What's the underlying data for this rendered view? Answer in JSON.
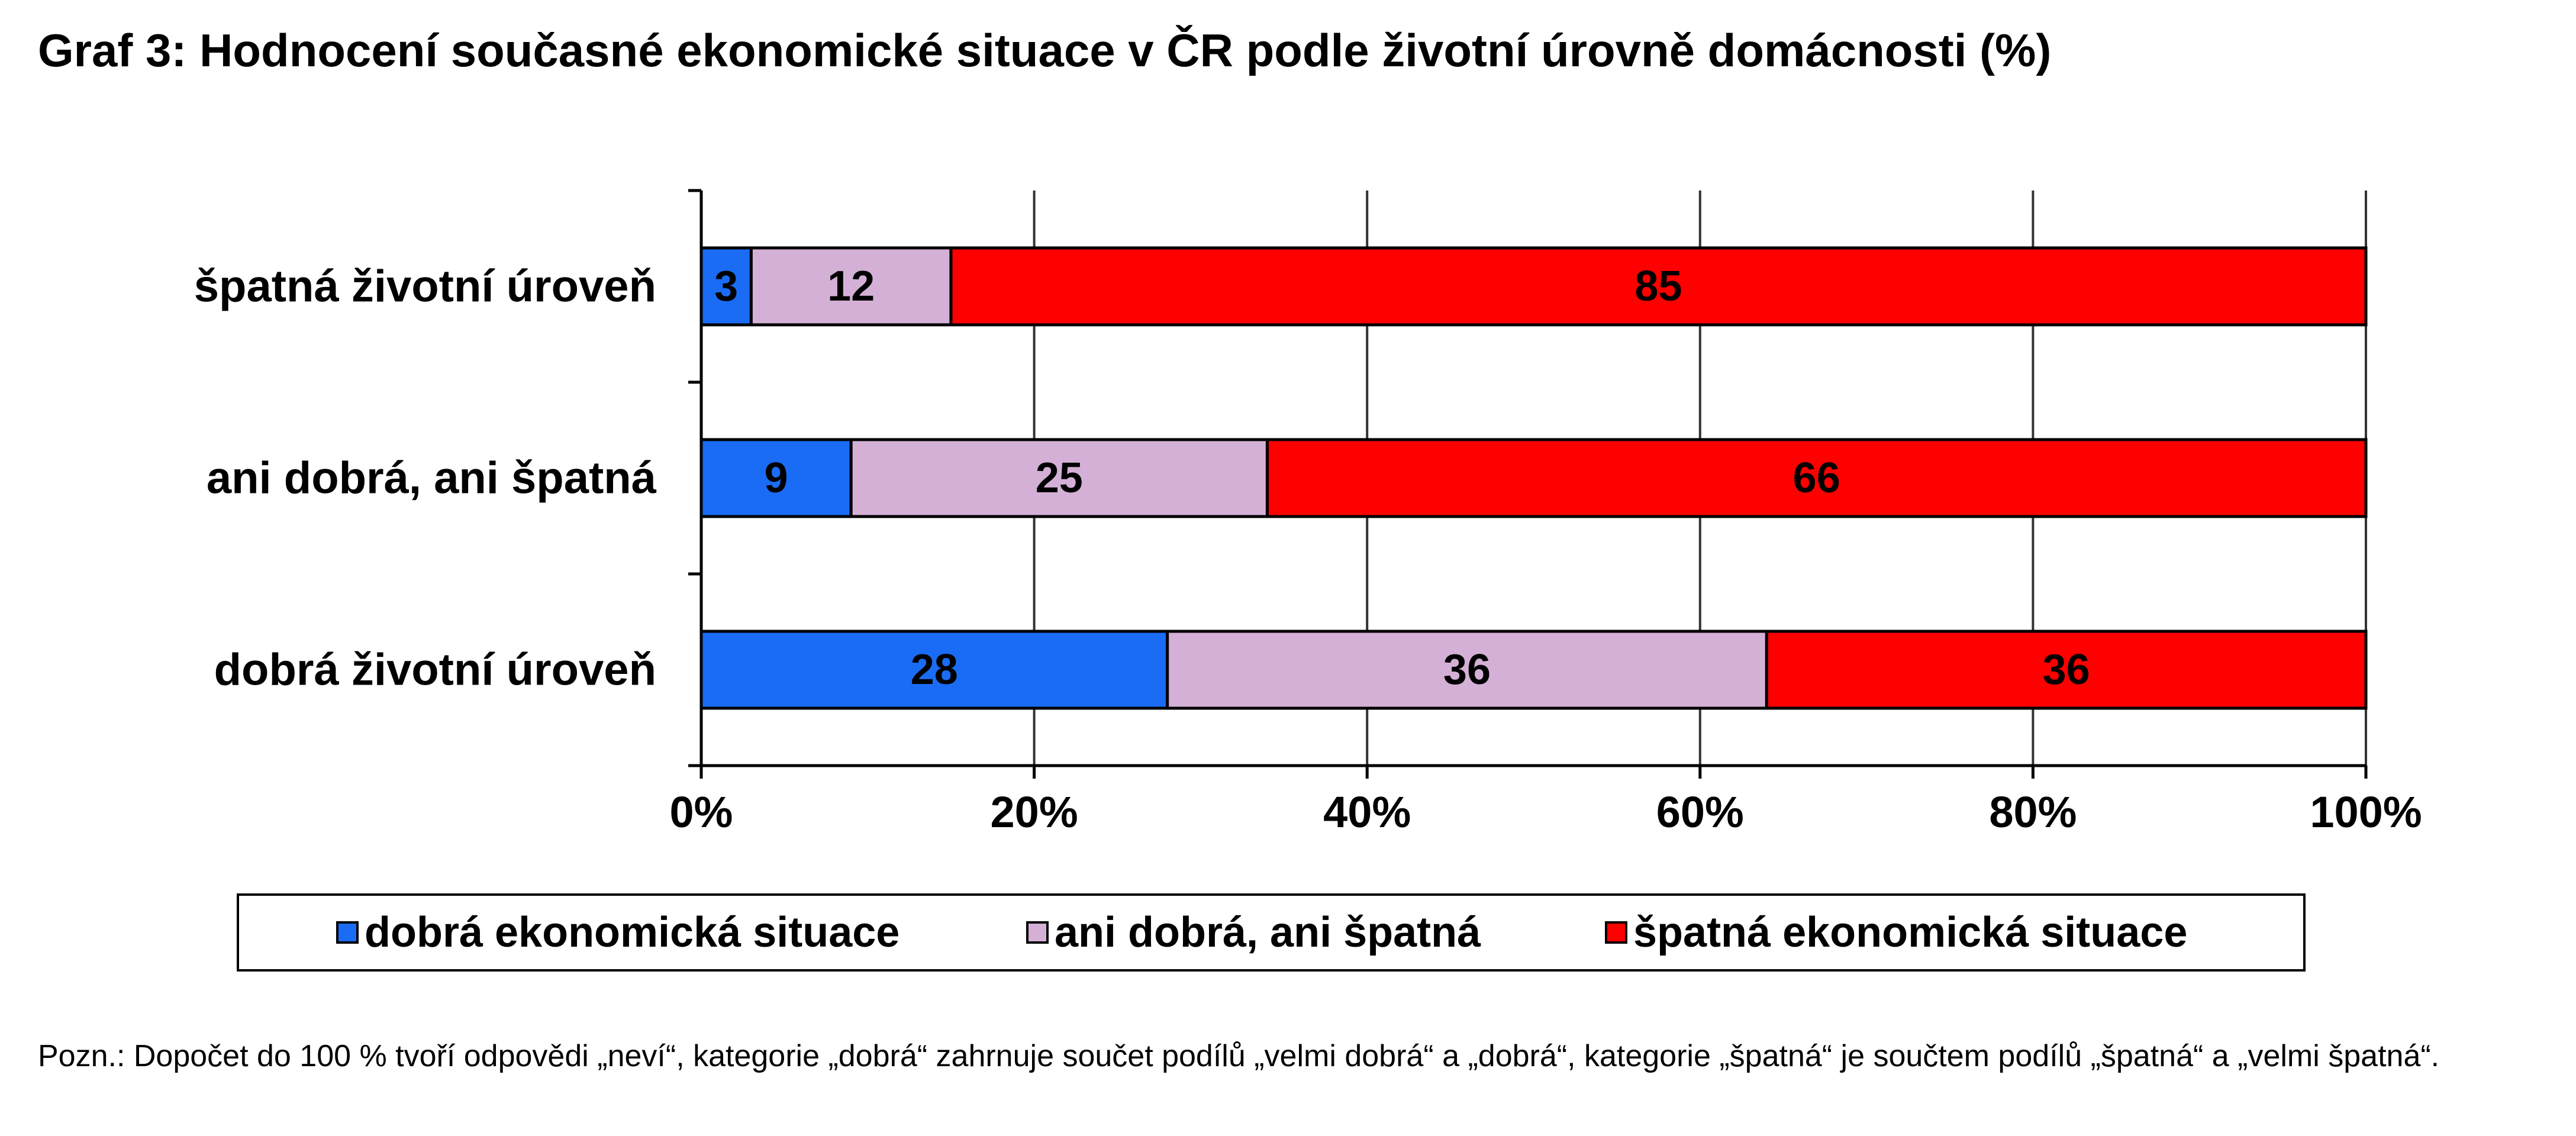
{
  "title": "Graf 3: Hodnocení současné ekonomické situace v ČR podle životní úrovně domácnosti (%)",
  "footnote": "Pozn.: Dopočet do 100 % tvoří odpovědi „neví“, kategorie „dobrá“ zahrnuje součet podílů „velmi dobrá“ a „dobrá“, kategorie „špatná“ je součtem podílů „špatná“ a „velmi špatná“.",
  "chart_data": {
    "type": "bar",
    "orientation": "horizontal",
    "stacked": true,
    "normalized_100": true,
    "categories": [
      "špatná životní úroveň",
      "ani dobrá, ani špatná",
      "dobrá životní úroveň"
    ],
    "series": [
      {
        "name": "dobrá ekonomická situace",
        "values": [
          3,
          9,
          28
        ],
        "color": "#1a6cf5"
      },
      {
        "name": "ani dobrá, ani špatná",
        "values": [
          12,
          25,
          36
        ],
        "color": "#d4b0d6"
      },
      {
        "name": "špatná ekonomická situace",
        "values": [
          85,
          66,
          36
        ],
        "color": "#ff0000"
      }
    ],
    "x_ticks": [
      "0%",
      "20%",
      "40%",
      "60%",
      "80%",
      "100%"
    ],
    "xlim": [
      0,
      100
    ],
    "grid": "vertical",
    "data_labels": true,
    "legend_position": "bottom"
  }
}
